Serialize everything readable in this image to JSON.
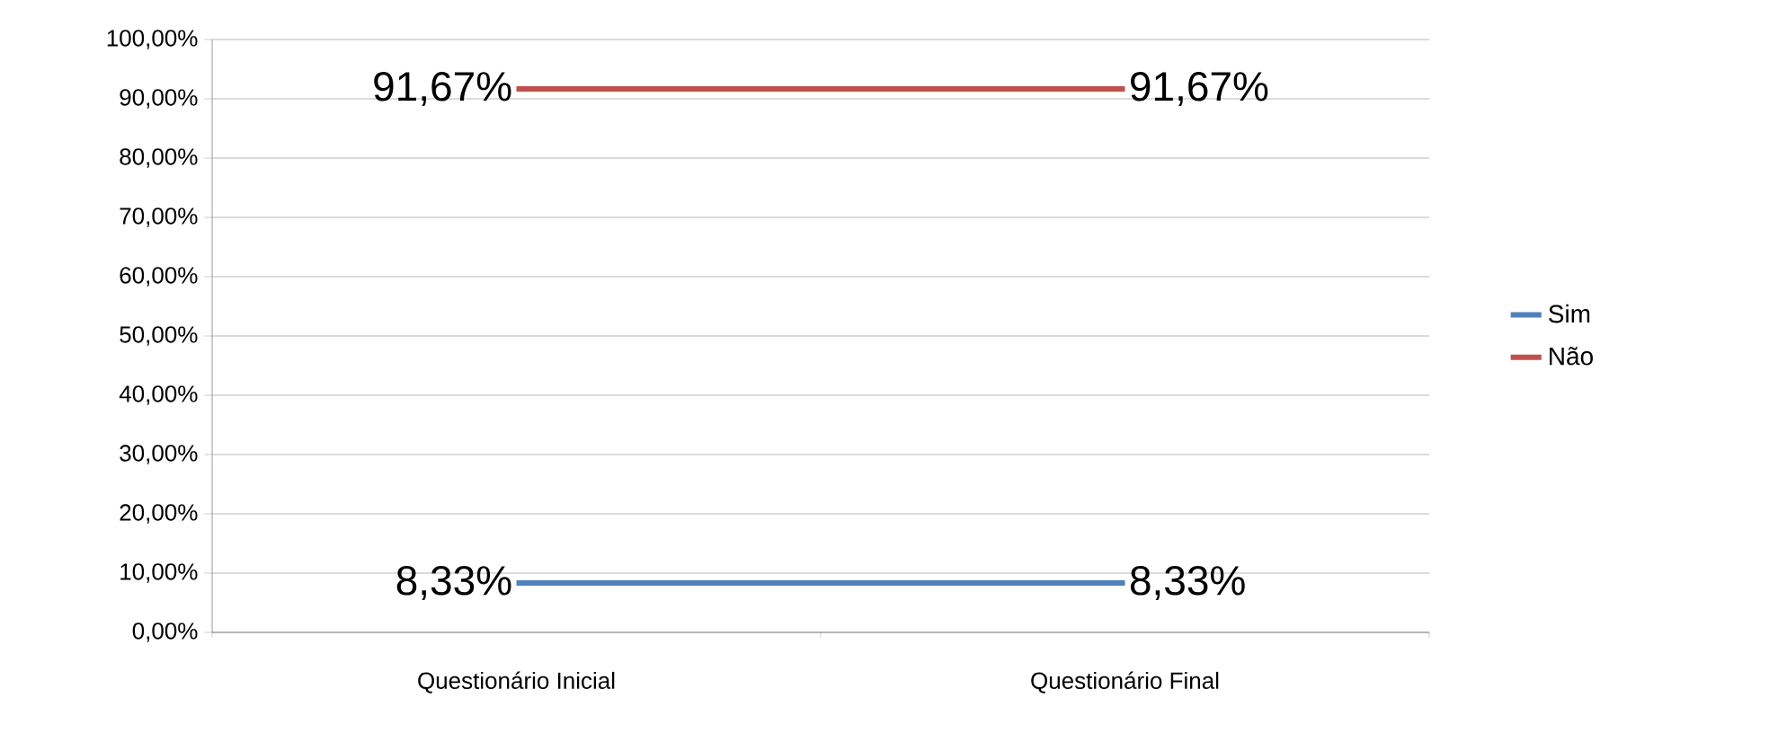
{
  "chart_data": {
    "type": "line",
    "categories": [
      "Questionário Inicial",
      "Questionário Final"
    ],
    "series": [
      {
        "name": "Sim",
        "color": "#4f81bd",
        "values": [
          8.33,
          8.33
        ],
        "value_labels": [
          "8,33%",
          "8,33%"
        ]
      },
      {
        "name": "Não",
        "color": "#c0504d",
        "values": [
          91.67,
          91.67
        ],
        "value_labels": [
          "91,67%",
          "91,67%"
        ]
      }
    ],
    "ylim": [
      0,
      100
    ],
    "yticks": [
      {
        "value": 0,
        "label": "0,00%"
      },
      {
        "value": 10,
        "label": "10,00%"
      },
      {
        "value": 20,
        "label": "20,00%"
      },
      {
        "value": 30,
        "label": "30,00%"
      },
      {
        "value": 40,
        "label": "40,00%"
      },
      {
        "value": 50,
        "label": "50,00%"
      },
      {
        "value": 60,
        "label": "60,00%"
      },
      {
        "value": 70,
        "label": "70,00%"
      },
      {
        "value": 80,
        "label": "80,00%"
      },
      {
        "value": 90,
        "label": "90,00%"
      },
      {
        "value": 100,
        "label": "100,00%"
      }
    ],
    "grid": "y",
    "legend": "right",
    "marker": "none",
    "line_style": "solid"
  }
}
